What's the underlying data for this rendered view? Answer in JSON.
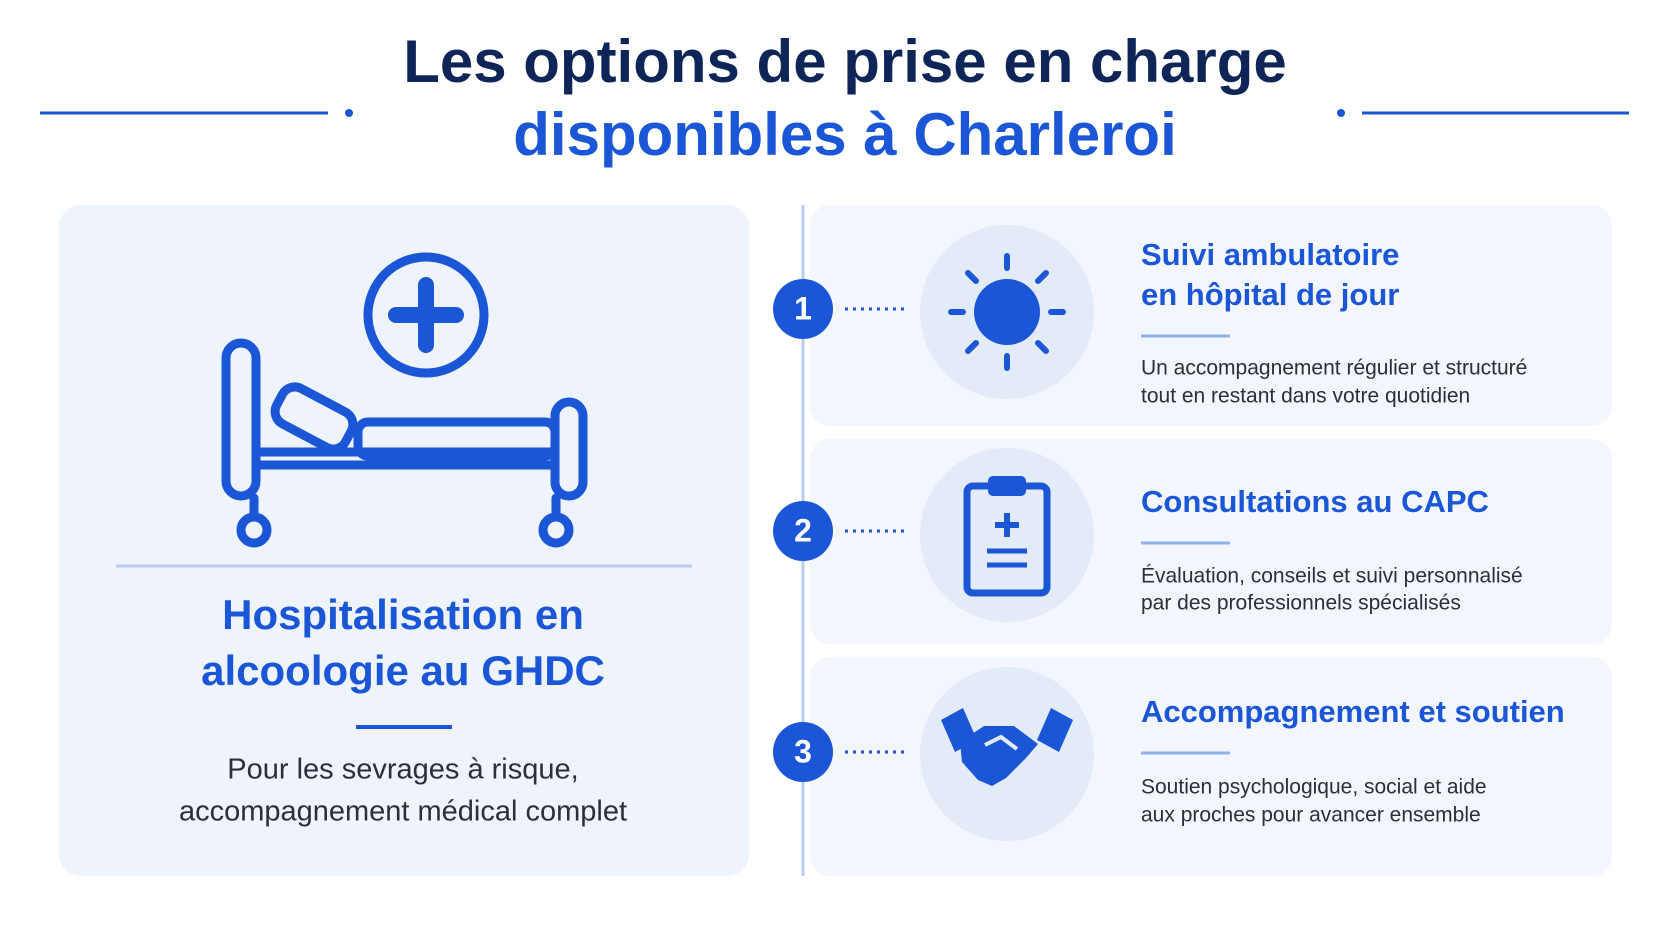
{
  "header": {
    "title_line1": "Les options de prise en charge",
    "title_line2": "disponibles à Charleroi"
  },
  "main_option": {
    "title_line1": "Hospitalisation en",
    "title_line2": "alcoologie au GHDC",
    "description_line1": "Pour les sevrages à risque,",
    "description_line2": "accompagnement médical complet"
  },
  "options": [
    {
      "number": "1",
      "title_line1": "Suivi ambulatoire",
      "title_line2": "en hôpital de jour",
      "description_line1": "Un accompagnement régulier et structuré",
      "description_line2": "tout en restant dans votre quotidien"
    },
    {
      "number": "2",
      "title_line1": "Consultations au CAPC",
      "description_line1": "Évaluation, conseils et suivi personnalisé",
      "description_line2": "par des professionnels spécialisés"
    },
    {
      "number": "3",
      "title_line1": "Accompagnement et soutien",
      "description_line1": "Soutien psychologique, social et aide",
      "description_line2": "aux proches pour avancer ensemble"
    }
  ]
}
